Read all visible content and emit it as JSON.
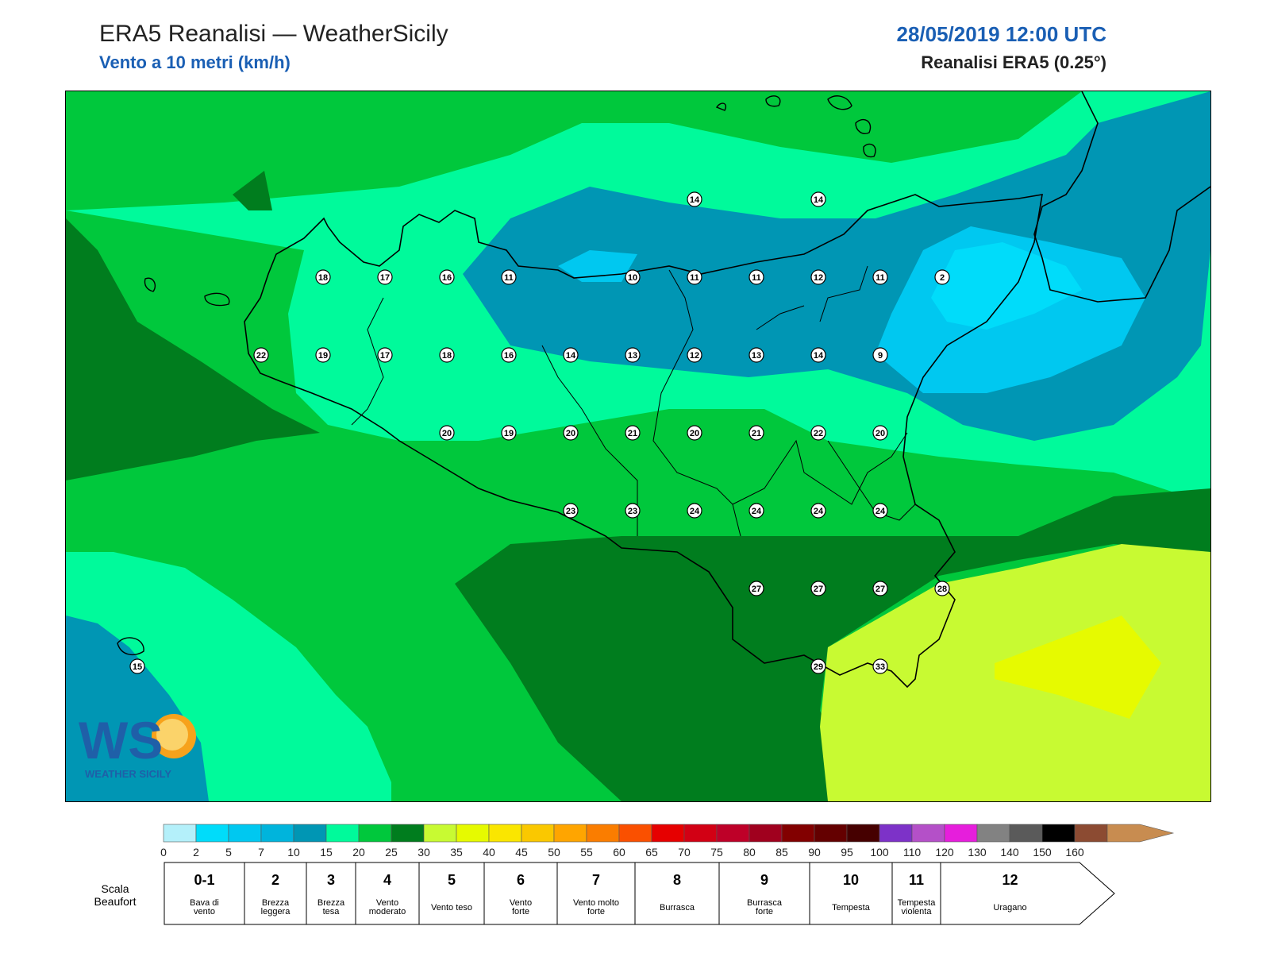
{
  "header": {
    "title": "ERA5 Reanalisi — WeatherSicily",
    "subtitle": "Vento a 10 metri (km/h)",
    "datetime": "28/05/2019 12:00 UTC",
    "source": "Reanalisi ERA5 (0.25°)"
  },
  "logo": {
    "text": "WS",
    "tagline": "WEATHER SICILY"
  },
  "map": {
    "points": [
      {
        "v": "14",
        "x": 14.0,
        "y": 38.6
      },
      {
        "v": "14",
        "x": 14.5,
        "y": 38.6
      },
      {
        "v": "18",
        "x": 12.5,
        "y": 38.35
      },
      {
        "v": "17",
        "x": 12.75,
        "y": 38.35
      },
      {
        "v": "16",
        "x": 13.0,
        "y": 38.35
      },
      {
        "v": "11",
        "x": 13.25,
        "y": 38.35
      },
      {
        "v": "10",
        "x": 13.75,
        "y": 38.35
      },
      {
        "v": "11",
        "x": 14.0,
        "y": 38.35
      },
      {
        "v": "11",
        "x": 14.25,
        "y": 38.35
      },
      {
        "v": "12",
        "x": 14.5,
        "y": 38.35
      },
      {
        "v": "11",
        "x": 14.75,
        "y": 38.35
      },
      {
        "v": "2",
        "x": 15.0,
        "y": 38.35
      },
      {
        "v": "22",
        "x": 12.25,
        "y": 38.1
      },
      {
        "v": "19",
        "x": 12.5,
        "y": 38.1
      },
      {
        "v": "17",
        "x": 12.75,
        "y": 38.1
      },
      {
        "v": "18",
        "x": 13.0,
        "y": 38.1
      },
      {
        "v": "16",
        "x": 13.25,
        "y": 38.1
      },
      {
        "v": "14",
        "x": 13.5,
        "y": 38.1
      },
      {
        "v": "13",
        "x": 13.75,
        "y": 38.1
      },
      {
        "v": "12",
        "x": 14.0,
        "y": 38.1
      },
      {
        "v": "13",
        "x": 14.25,
        "y": 38.1
      },
      {
        "v": "14",
        "x": 14.5,
        "y": 38.1
      },
      {
        "v": "9",
        "x": 14.75,
        "y": 38.1
      },
      {
        "v": "20",
        "x": 13.0,
        "y": 37.85
      },
      {
        "v": "19",
        "x": 13.25,
        "y": 37.85
      },
      {
        "v": "20",
        "x": 13.5,
        "y": 37.85
      },
      {
        "v": "21",
        "x": 13.75,
        "y": 37.85
      },
      {
        "v": "20",
        "x": 14.0,
        "y": 37.85
      },
      {
        "v": "21",
        "x": 14.25,
        "y": 37.85
      },
      {
        "v": "22",
        "x": 14.5,
        "y": 37.85
      },
      {
        "v": "20",
        "x": 14.75,
        "y": 37.85
      },
      {
        "v": "23",
        "x": 13.5,
        "y": 37.6
      },
      {
        "v": "23",
        "x": 13.75,
        "y": 37.6
      },
      {
        "v": "24",
        "x": 14.0,
        "y": 37.6
      },
      {
        "v": "24",
        "x": 14.25,
        "y": 37.6
      },
      {
        "v": "24",
        "x": 14.5,
        "y": 37.6
      },
      {
        "v": "24",
        "x": 14.75,
        "y": 37.6
      },
      {
        "v": "27",
        "x": 14.25,
        "y": 37.35
      },
      {
        "v": "27",
        "x": 14.5,
        "y": 37.35
      },
      {
        "v": "27",
        "x": 14.75,
        "y": 37.35
      },
      {
        "v": "28",
        "x": 15.0,
        "y": 37.35
      },
      {
        "v": "15",
        "x": 11.75,
        "y": 37.1
      },
      {
        "v": "29",
        "x": 14.5,
        "y": 37.1
      },
      {
        "v": "33",
        "x": 14.75,
        "y": 37.1
      }
    ]
  },
  "colorbar": {
    "colors": [
      "#b4f0fa",
      "#00dcfa",
      "#00c8f0",
      "#00b4dc",
      "#0096b4",
      "#00fa9b",
      "#00c83c",
      "#007d1e",
      "#c8fa32",
      "#e6fa00",
      "#fae600",
      "#fac800",
      "#ffa500",
      "#fa7d00",
      "#fa5000",
      "#e60000",
      "#d20014",
      "#be0028",
      "#a0001e",
      "#820000",
      "#640000",
      "#460000",
      "#7d32c8",
      "#b450c8",
      "#e61edc",
      "#828282",
      "#5a5a5a",
      "#000000",
      "#8c4b32",
      "#c88c50"
    ],
    "ticks": [
      "0",
      "2",
      "5",
      "7",
      "10",
      "15",
      "20",
      "25",
      "30",
      "35",
      "40",
      "45",
      "50",
      "55",
      "60",
      "65",
      "70",
      "75",
      "80",
      "85",
      "90",
      "95",
      "100",
      "110",
      "120",
      "130",
      "140",
      "150",
      "160"
    ]
  },
  "beaufort": {
    "title_line1": "Scala",
    "title_line2": "Beaufort",
    "items": [
      {
        "n": "0-1",
        "l1": "Bava di",
        "l2": "vento"
      },
      {
        "n": "2",
        "l1": "Brezza",
        "l2": "leggera"
      },
      {
        "n": "3",
        "l1": "Brezza",
        "l2": "tesa"
      },
      {
        "n": "4",
        "l1": "Vento",
        "l2": "moderato"
      },
      {
        "n": "5",
        "l1": "Vento teso",
        "l2": ""
      },
      {
        "n": "6",
        "l1": "Vento",
        "l2": "forte"
      },
      {
        "n": "7",
        "l1": "Vento molto",
        "l2": "forte"
      },
      {
        "n": "8",
        "l1": "Burrasca",
        "l2": ""
      },
      {
        "n": "9",
        "l1": "Burrasca",
        "l2": "forte"
      },
      {
        "n": "10",
        "l1": "Tempesta",
        "l2": ""
      },
      {
        "n": "11",
        "l1": "Tempesta",
        "l2": "violenta"
      },
      {
        "n": "12",
        "l1": "Uragano",
        "l2": ""
      }
    ]
  }
}
